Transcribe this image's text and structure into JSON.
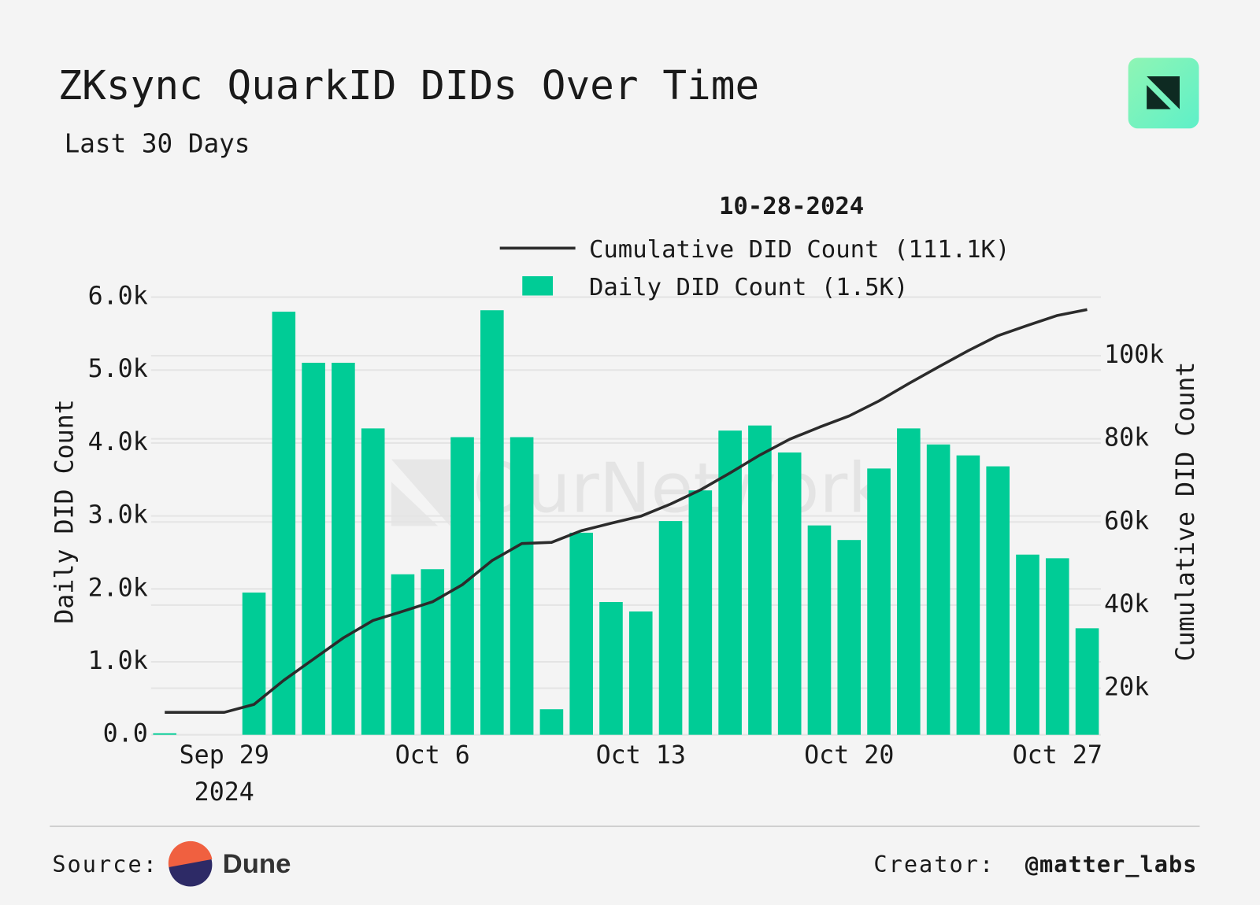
{
  "chart_data": {
    "type": "bar_line",
    "title": "ZKsync QuarkID DIDs Over Time",
    "subtitle": "Last 30 Days",
    "legend_title": "10-28-2024",
    "watermark": "OurNetwork",
    "ylabel": "Daily DID Count",
    "y2label": "Cumulative DID Count",
    "x": [
      "2024-09-27",
      "2024-09-28",
      "2024-09-29",
      "2024-09-30",
      "2024-10-01",
      "2024-10-02",
      "2024-10-03",
      "2024-10-04",
      "2024-10-05",
      "2024-10-06",
      "2024-10-07",
      "2024-10-08",
      "2024-10-09",
      "2024-10-10",
      "2024-10-11",
      "2024-10-12",
      "2024-10-13",
      "2024-10-14",
      "2024-10-15",
      "2024-10-16",
      "2024-10-17",
      "2024-10-18",
      "2024-10-19",
      "2024-10-20",
      "2024-10-21",
      "2024-10-22",
      "2024-10-23",
      "2024-10-24",
      "2024-10-25",
      "2024-10-26",
      "2024-10-27",
      "2024-10-28"
    ],
    "xticks": [
      {
        "value": "2024-09-29",
        "label": "Sep 29\n2024"
      },
      {
        "value": "2024-10-06",
        "label": "Oct 6"
      },
      {
        "value": "2024-10-13",
        "label": "Oct 13"
      },
      {
        "value": "2024-10-20",
        "label": "Oct 20"
      },
      {
        "value": "2024-10-27",
        "label": "Oct 27"
      }
    ],
    "ylim": [
      0,
      6000
    ],
    "yticks": [
      {
        "value": 0,
        "label": "0.0"
      },
      {
        "value": 1000,
        "label": "1.0k"
      },
      {
        "value": 2000,
        "label": "2.0k"
      },
      {
        "value": 3000,
        "label": "3.0k"
      },
      {
        "value": 4000,
        "label": "4.0k"
      },
      {
        "value": 5000,
        "label": "5.0k"
      },
      {
        "value": 6000,
        "label": "6.0k"
      }
    ],
    "y2lim": [
      8800,
      114100
    ],
    "y2ticks": [
      {
        "value": 20000,
        "label": "20k"
      },
      {
        "value": 40000,
        "label": "40k"
      },
      {
        "value": 60000,
        "label": "60k"
      },
      {
        "value": 80000,
        "label": "80k"
      },
      {
        "value": 100000,
        "label": "100k"
      }
    ],
    "grid": true,
    "series": [
      {
        "name": "Cumulative DID Count (111.1K)",
        "kind": "line",
        "axis": "y2",
        "color": "#2b2b2b",
        "values": [
          14200,
          14200,
          14200,
          16100,
          21900,
          27000,
          32100,
          36300,
          38500,
          40800,
          44900,
          50700,
          54800,
          55100,
          57900,
          59700,
          61400,
          64300,
          67700,
          71800,
          76100,
          79900,
          82800,
          85500,
          89100,
          93300,
          97300,
          101200,
          104800,
          107300,
          109700,
          111100
        ]
      },
      {
        "name": "Daily DID Count (1.5K)",
        "kind": "bar",
        "axis": "y",
        "color": "#00cc96",
        "values": [
          20,
          0,
          0,
          1950,
          5800,
          5100,
          5100,
          4200,
          2200,
          2270,
          4080,
          5820,
          4080,
          350,
          2770,
          1820,
          1690,
          2930,
          3350,
          4170,
          4240,
          3870,
          2870,
          2670,
          3650,
          4200,
          3980,
          3830,
          3680,
          2470,
          2420,
          1460
        ]
      }
    ],
    "footer": {
      "source_label": "Source:",
      "source_name": "Dune",
      "creator_label": "Creator:",
      "creator_name": "@matter_labs"
    }
  }
}
